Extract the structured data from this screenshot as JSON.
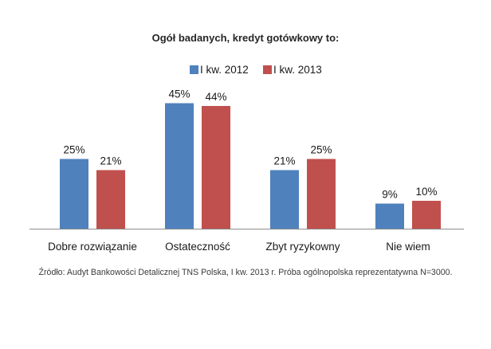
{
  "chart_data": {
    "type": "bar",
    "title": "Ogół badanych, kredyt gotówkowy to:",
    "categories": [
      "Dobre rozwiązanie",
      "Ostateczność",
      "Zbyt ryzykowny",
      "Nie wiem"
    ],
    "series": [
      {
        "name": "I kw. 2012",
        "color": "#4f81bd",
        "values": [
          25,
          45,
          21,
          9
        ],
        "labels": [
          "25%",
          "45%",
          "21%",
          "9%"
        ]
      },
      {
        "name": "I kw. 2013",
        "color": "#c0504d",
        "values": [
          21,
          44,
          25,
          10
        ],
        "labels": [
          "21%",
          "44%",
          "25%",
          "10%"
        ]
      }
    ],
    "ylim": [
      0,
      50
    ],
    "grid": false,
    "legend_position": "top-center"
  },
  "source_note": "Źródło: Audyt Bankowości Detalicznej TNS Polska, I kw. 2013 r. Próba ogólnopolska reprezentatywna N=3000."
}
